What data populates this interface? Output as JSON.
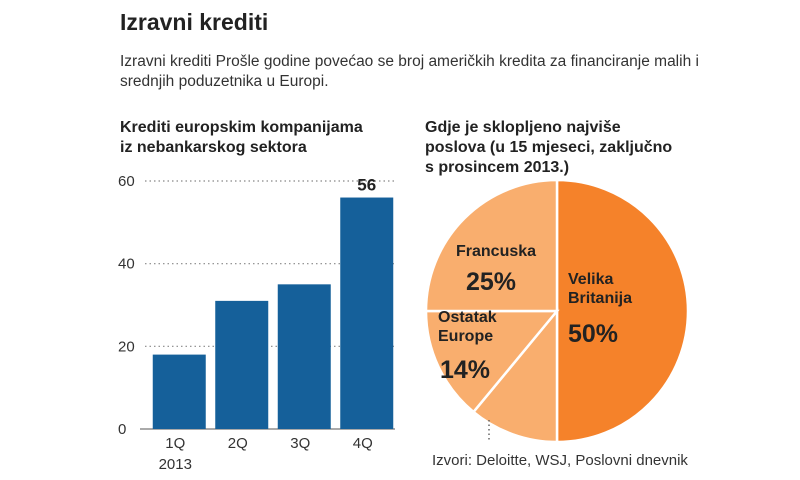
{
  "header": {
    "title": "Izravni krediti",
    "subtitle": "Izravni krediti Prošle godine povećao se broj američkih kredita za financiranje malih i srednjih poduzetnika u Europi."
  },
  "chart_data": [
    {
      "type": "bar",
      "title_lines": [
        "Krediti europskim kompanijama",
        "iz nebankarskog sektora"
      ],
      "categories": [
        "1Q",
        "2Q",
        "3Q",
        "4Q"
      ],
      "category_sublabel": "2013",
      "values": [
        18,
        31,
        35,
        56
      ],
      "value_labels": [
        "",
        "",
        "",
        "56"
      ],
      "yticks": [
        "0",
        "20",
        "40",
        "60"
      ],
      "ylim": [
        0,
        60
      ],
      "color": "#15609a"
    },
    {
      "type": "pie",
      "title_lines": [
        "Gdje je sklopljeno najviše",
        "poslova (u 15 mjeseci, zaključno",
        "s prosincem 2013.)"
      ],
      "slices": [
        {
          "name_lines": [
            "Velika",
            "Britanija"
          ],
          "value": 50,
          "label": "50%",
          "color": "#f5822a"
        },
        {
          "name_lines": [],
          "value": 11,
          "label": "",
          "color": "#f9ae6e"
        },
        {
          "name_lines": [
            "Ostatak",
            "Europe"
          ],
          "value": 14,
          "label": "14%",
          "color": "#f9ae6e"
        },
        {
          "name_lines": [
            "Francuska"
          ],
          "value": 25,
          "label": "25%",
          "color": "#f9ae6e"
        }
      ]
    }
  ],
  "footer": {
    "source": "Izvori: Deloitte, WSJ, Poslovni dnevnik"
  }
}
